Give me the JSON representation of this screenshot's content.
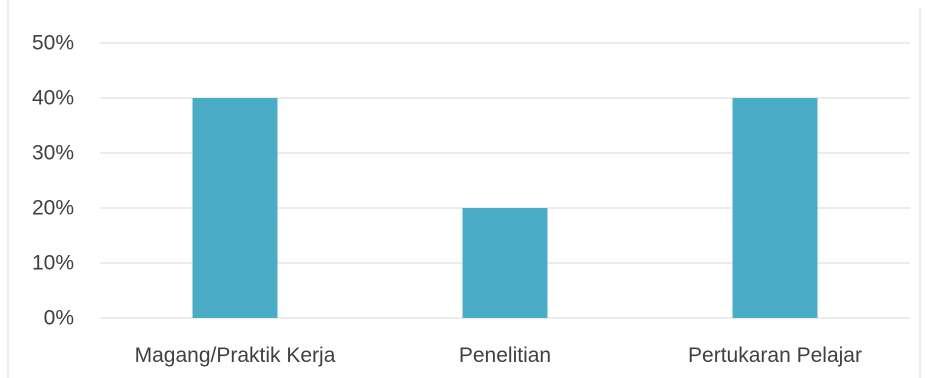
{
  "chart_data": {
    "type": "bar",
    "categories": [
      "Magang/Praktik Kerja",
      "Penelitian",
      "Pertukaran Pelajar"
    ],
    "values": [
      40,
      20,
      40
    ],
    "value_format": "percent",
    "ylim": [
      0,
      50
    ],
    "yticks": [
      "0%",
      "10%",
      "20%",
      "30%",
      "40%",
      "50%"
    ],
    "grid": true,
    "legend": "none",
    "bar_color": "#4BACC6",
    "title": "",
    "xlabel": "",
    "ylabel": ""
  }
}
